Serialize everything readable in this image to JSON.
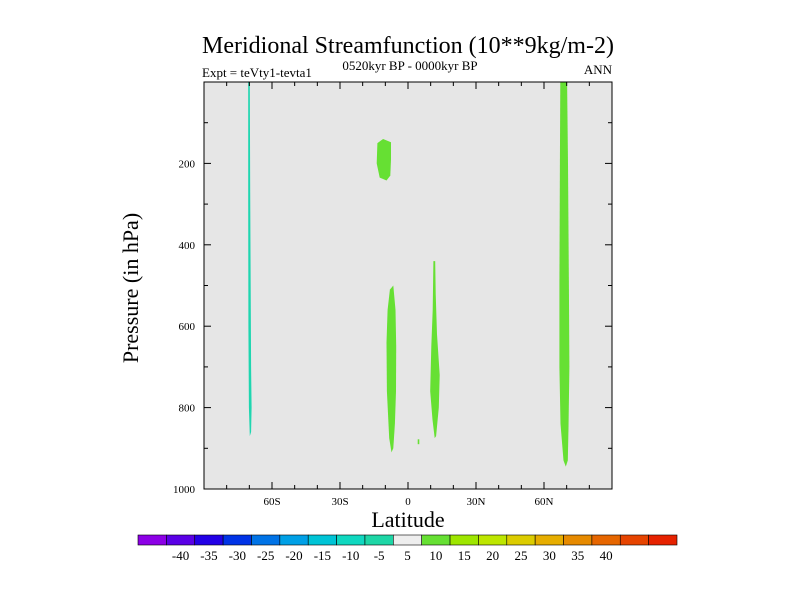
{
  "chart_data": {
    "type": "heatmap",
    "title": "Meridional Streamfunction (10**9kg/m-2)",
    "subtitle_left": "Expt = teVty1-tevta1",
    "subtitle_center": "0520kyr BP - 0000kyr BP",
    "subtitle_right": "ANN",
    "xlabel": "Latitude",
    "ylabel": "Pressure (in hPa)",
    "xlim": [
      -90,
      90
    ],
    "ylim": [
      1000,
      0
    ],
    "x_ticks": [
      {
        "value": -60,
        "label": "60S"
      },
      {
        "value": -30,
        "label": "30S"
      },
      {
        "value": 0,
        "label": "0"
      },
      {
        "value": 30,
        "label": "30N"
      },
      {
        "value": 60,
        "label": "60N"
      }
    ],
    "y_ticks": [
      {
        "value": 200,
        "label": "200"
      },
      {
        "value": 400,
        "label": "400"
      },
      {
        "value": 600,
        "label": "600"
      },
      {
        "value": 800,
        "label": "800"
      },
      {
        "value": 1000,
        "label": "1000"
      }
    ],
    "background_color": "#e6e6e6",
    "filled_regions": [
      {
        "name": "cyan-band-60S",
        "bin": "-10 to -5",
        "color": "#1fd6b0",
        "points": [
          [
            -70.5,
            0
          ],
          [
            -69.8,
            0
          ],
          [
            -69.6,
            270
          ],
          [
            -69.2,
            700
          ],
          [
            -69.0,
            800
          ],
          [
            -69.2,
            860
          ],
          [
            -69.8,
            870
          ],
          [
            -70.2,
            800
          ],
          [
            -70.4,
            600
          ],
          [
            -70.5,
            300
          ]
        ]
      },
      {
        "name": "green-blob-upper",
        "bin": "5 to 10",
        "color": "#66e033",
        "points": [
          [
            -13.5,
            150
          ],
          [
            -11,
            140
          ],
          [
            -7.5,
            148
          ],
          [
            -7.5,
            190
          ],
          [
            -7.8,
            230
          ],
          [
            -9.5,
            242
          ],
          [
            -12.5,
            235
          ],
          [
            -13.8,
            200
          ]
        ]
      },
      {
        "name": "green-band-south-eq",
        "bin": "5 to 10",
        "color": "#66e033",
        "points": [
          [
            -8,
            510
          ],
          [
            -6.5,
            500
          ],
          [
            -5.5,
            560
          ],
          [
            -5.2,
            650
          ],
          [
            -5.3,
            760
          ],
          [
            -5.8,
            840
          ],
          [
            -6.5,
            900
          ],
          [
            -7.3,
            910
          ],
          [
            -8.3,
            875
          ],
          [
            -9.3,
            760
          ],
          [
            -9.5,
            640
          ],
          [
            -9.0,
            560
          ]
        ]
      },
      {
        "name": "green-band-north-eq",
        "bin": "5 to 10",
        "color": "#66e033",
        "points": [
          [
            11.2,
            440
          ],
          [
            12.0,
            440
          ],
          [
            12.2,
            520
          ],
          [
            12.8,
            620
          ],
          [
            14.0,
            720
          ],
          [
            13.6,
            800
          ],
          [
            12.4,
            870
          ],
          [
            11.8,
            875
          ],
          [
            10.8,
            830
          ],
          [
            9.8,
            760
          ],
          [
            10.3,
            650
          ],
          [
            10.9,
            560
          ]
        ]
      },
      {
        "name": "green-speck-eq",
        "bin": "5 to 10",
        "color": "#66e033",
        "points": [
          [
            4.3,
            878
          ],
          [
            5.0,
            878
          ],
          [
            5.0,
            890
          ],
          [
            4.3,
            890
          ]
        ]
      },
      {
        "name": "green-band-60N",
        "bin": "5 to 10",
        "color": "#66e033",
        "points": [
          [
            67.2,
            0
          ],
          [
            70.2,
            0
          ],
          [
            70.6,
            200
          ],
          [
            71.0,
            500
          ],
          [
            71.2,
            700
          ],
          [
            70.8,
            850
          ],
          [
            70.5,
            930
          ],
          [
            69.6,
            945
          ],
          [
            68.6,
            930
          ],
          [
            67.3,
            840
          ],
          [
            66.8,
            700
          ],
          [
            66.8,
            500
          ],
          [
            67.0,
            200
          ]
        ]
      }
    ],
    "colorbar": {
      "colors": [
        "#8c00e6",
        "#5a00e6",
        "#2200e6",
        "#0033e6",
        "#0073e6",
        "#00a0e6",
        "#00c4d6",
        "#10d8c0",
        "#1ed6a6",
        "#eeeeee",
        "#66e033",
        "#9ee600",
        "#bde600",
        "#dccc00",
        "#e6ad00",
        "#e68a00",
        "#e66600",
        "#e64400",
        "#e62200"
      ],
      "labels": [
        "-40",
        "-35",
        "-30",
        "-25",
        "-20",
        "-15",
        "-10",
        "-5",
        "5",
        "10",
        "15",
        "20",
        "25",
        "30",
        "35",
        "40"
      ]
    }
  }
}
